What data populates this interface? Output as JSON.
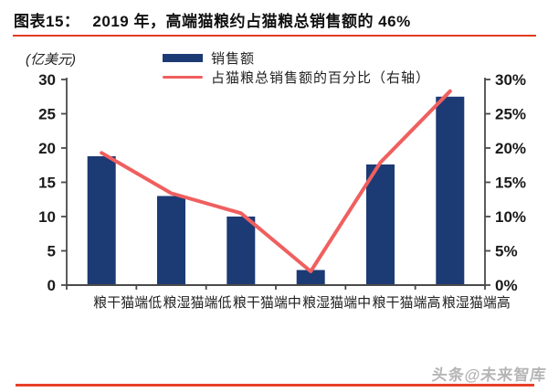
{
  "header": {
    "prefix": "图表15：",
    "title": "2019 年，高端猫粮约占猫粮总销售额的 46%"
  },
  "colors": {
    "bar": "#1c3a74",
    "line": "#f05f5f",
    "rule_top": "#e23a20",
    "rule_bottom": "#e8402a",
    "axis": "#4a4a4a",
    "tick_text": "#1a1a1a",
    "watermark": "#a3a3a3"
  },
  "watermark": {
    "text": "头条@未来智库"
  },
  "chart_data": {
    "type": "bar",
    "title": "2019 年，高端猫粮约占猫粮总销售额的 46%",
    "categories": [
      "低端猫干粮",
      "低端猫湿粮",
      "中端猫干粮",
      "中端猫湿粮",
      "高端猫干粮",
      "高端猫湿粮"
    ],
    "series": [
      {
        "name": "销售额",
        "type": "bar",
        "axis": "left",
        "values": [
          18.8,
          13.0,
          10.0,
          2.2,
          17.6,
          27.5
        ]
      },
      {
        "name": "占猫粮总销售额的百分比（右轴）",
        "type": "line",
        "axis": "right",
        "values": [
          19.3,
          13.4,
          10.5,
          2.0,
          17.9,
          28.3
        ]
      }
    ],
    "left_axis": {
      "label": "(亿美元)",
      "min": 0,
      "max": 30,
      "ticks": [
        0,
        5,
        10,
        15,
        20,
        25,
        30
      ],
      "tick_labels": [
        "0",
        "5",
        "10",
        "15",
        "20",
        "25",
        "30"
      ]
    },
    "right_axis": {
      "min": 0,
      "max": 30,
      "ticks": [
        0,
        5,
        10,
        15,
        20,
        25,
        30
      ],
      "tick_labels": [
        "0%",
        "5%",
        "10%",
        "15%",
        "20%",
        "25%",
        "30%"
      ]
    },
    "legend_position": "top",
    "grid": false
  }
}
